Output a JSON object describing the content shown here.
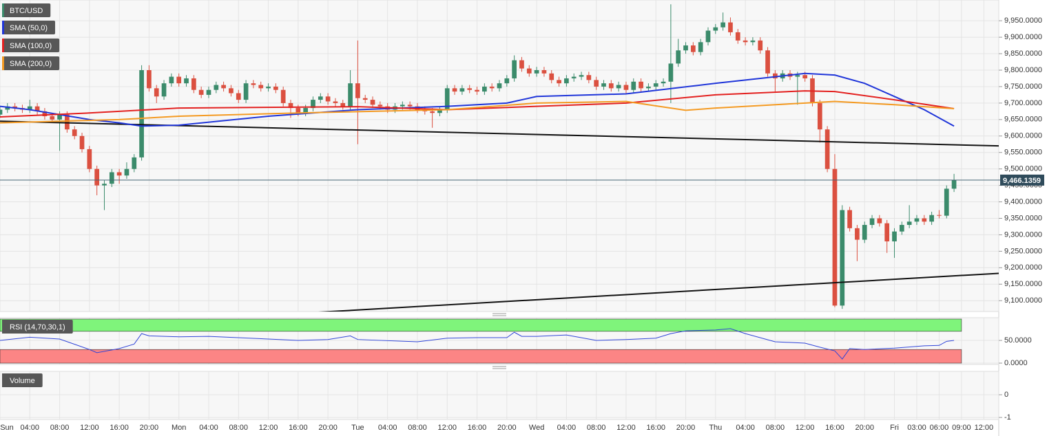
{
  "chart_data": [
    {
      "type": "candlestick",
      "name": "BTC/USD",
      "up_color": "#3b8b6b",
      "down_color": "#db5040",
      "xlim": [
        0,
        134
      ],
      "xticks": [
        {
          "value": 0,
          "label": "Sun"
        },
        {
          "value": 4,
          "label": "04:00"
        },
        {
          "value": 8,
          "label": "08:00"
        },
        {
          "value": 12,
          "label": "12:00"
        },
        {
          "value": 16,
          "label": "16:00"
        },
        {
          "value": 20,
          "label": "20:00"
        },
        {
          "value": 24,
          "label": "Mon"
        },
        {
          "value": 28,
          "label": "04:00"
        },
        {
          "value": 32,
          "label": "08:00"
        },
        {
          "value": 36,
          "label": "12:00"
        },
        {
          "value": 40,
          "label": "16:00"
        },
        {
          "value": 44,
          "label": "20:00"
        },
        {
          "value": 48,
          "label": "Tue"
        },
        {
          "value": 52,
          "label": "04:00"
        },
        {
          "value": 56,
          "label": "08:00"
        },
        {
          "value": 60,
          "label": "12:00"
        },
        {
          "value": 64,
          "label": "16:00"
        },
        {
          "value": 68,
          "label": "20:00"
        },
        {
          "value": 72,
          "label": "Wed"
        },
        {
          "value": 76,
          "label": "04:00"
        },
        {
          "value": 80,
          "label": "08:00"
        },
        {
          "value": 84,
          "label": "12:00"
        },
        {
          "value": 88,
          "label": "16:00"
        },
        {
          "value": 92,
          "label": "20:00"
        },
        {
          "value": 96,
          "label": "Thu"
        },
        {
          "value": 100,
          "label": "04:00"
        },
        {
          "value": 104,
          "label": "08:00"
        },
        {
          "value": 108,
          "label": "12:00"
        },
        {
          "value": 112,
          "label": "16:00"
        },
        {
          "value": 116,
          "label": "20:00"
        },
        {
          "value": 120,
          "label": "Fri"
        },
        {
          "value": 123,
          "label": "03:00"
        },
        {
          "value": 126,
          "label": "06:00"
        },
        {
          "value": 129,
          "label": "09:00"
        },
        {
          "value": 132,
          "label": "12:00"
        }
      ],
      "ylim": [
        9067,
        10013
      ],
      "yticks": [
        {
          "value": 9100,
          "label": "9,100.0000"
        },
        {
          "value": 9150,
          "label": "9,150.0000"
        },
        {
          "value": 9200,
          "label": "9,200.0000"
        },
        {
          "value": 9250,
          "label": "9,250.0000"
        },
        {
          "value": 9300,
          "label": "9,300.0000"
        },
        {
          "value": 9350,
          "label": "9,350.0000"
        },
        {
          "value": 9400,
          "label": "9,400.0000"
        },
        {
          "value": 9450,
          "label": "9,450.0000"
        },
        {
          "value": 9500,
          "label": "9,500.0000"
        },
        {
          "value": 9550,
          "label": "9,550.0000"
        },
        {
          "value": 9600,
          "label": "9,600.0000"
        },
        {
          "value": 9650,
          "label": "9,650.0000"
        },
        {
          "value": 9700,
          "label": "9,700.0000"
        },
        {
          "value": 9750,
          "label": "9,750.0000"
        },
        {
          "value": 9800,
          "label": "9,800.0000"
        },
        {
          "value": 9850,
          "label": "9,850.0000"
        },
        {
          "value": 9900,
          "label": "9,900.0000"
        },
        {
          "value": 9950,
          "label": "9,950.0000"
        }
      ],
      "grid": true,
      "x": [
        0,
        1,
        2,
        3,
        4,
        5,
        6,
        7,
        8,
        9,
        10,
        11,
        12,
        13,
        14,
        15,
        16,
        17,
        18,
        19,
        20,
        21,
        22,
        23,
        24,
        25,
        26,
        27,
        28,
        29,
        30,
        31,
        32,
        33,
        34,
        35,
        36,
        37,
        38,
        39,
        40,
        41,
        42,
        43,
        44,
        45,
        46,
        47,
        48,
        49,
        50,
        51,
        52,
        53,
        54,
        55,
        56,
        57,
        58,
        59,
        60,
        61,
        62,
        63,
        64,
        65,
        66,
        67,
        68,
        69,
        70,
        71,
        72,
        73,
        74,
        75,
        76,
        77,
        78,
        79,
        80,
        81,
        82,
        83,
        84,
        85,
        86,
        87,
        88,
        89,
        90,
        91,
        92,
        93,
        94,
        95,
        96,
        97,
        98,
        99,
        100,
        101,
        102,
        103,
        104,
        105,
        106,
        107,
        108,
        109,
        110,
        111,
        112,
        113,
        114,
        115,
        116,
        117,
        118,
        119,
        120,
        121,
        122,
        123,
        124,
        125,
        126,
        127,
        128
      ],
      "open": [
        9665,
        9680,
        9690,
        9685,
        9680,
        9690,
        9675,
        9660,
        9650,
        9665,
        9620,
        9600,
        9560,
        9500,
        9450,
        9455,
        9490,
        9480,
        9500,
        9535,
        9800,
        9745,
        9720,
        9760,
        9780,
        9760,
        9775,
        9740,
        9725,
        9740,
        9755,
        9745,
        9730,
        9710,
        9760,
        9755,
        9745,
        9750,
        9740,
        9700,
        9685,
        9670,
        9685,
        9710,
        9720,
        9705,
        9700,
        9690,
        9760,
        9715,
        9710,
        9695,
        9690,
        9680,
        9690,
        9695,
        9690,
        9680,
        9675,
        9670,
        9680,
        9745,
        9735,
        9745,
        9740,
        9735,
        9750,
        9745,
        9760,
        9775,
        9830,
        9805,
        9790,
        9800,
        9790,
        9770,
        9760,
        9775,
        9780,
        9785,
        9770,
        9750,
        9760,
        9745,
        9755,
        9740,
        9765,
        9745,
        9750,
        9760,
        9765,
        9820,
        9860,
        9875,
        9855,
        9885,
        9920,
        9930,
        9945,
        9915,
        9890,
        9885,
        9890,
        9860,
        9790,
        9775,
        9790,
        9780,
        9785,
        9775,
        9700,
        9620,
        9500,
        9085,
        9375,
        9320,
        9285,
        9330,
        9350,
        9335,
        9280,
        9310,
        9330,
        9340,
        9350,
        9340,
        9360,
        9358,
        9440
      ],
      "high": [
        9690,
        9700,
        9700,
        9695,
        9710,
        9700,
        9685,
        9670,
        9675,
        9675,
        9630,
        9610,
        9570,
        9510,
        9465,
        9500,
        9500,
        9520,
        9545,
        9815,
        9815,
        9755,
        9770,
        9790,
        9790,
        9785,
        9785,
        9750,
        9750,
        9765,
        9765,
        9755,
        9740,
        9770,
        9770,
        9765,
        9760,
        9760,
        9750,
        9710,
        9695,
        9695,
        9720,
        9730,
        9730,
        9715,
        9710,
        9800,
        9890,
        9725,
        9720,
        9705,
        9700,
        9700,
        9705,
        9705,
        9700,
        9690,
        9685,
        9690,
        9755,
        9755,
        9755,
        9755,
        9750,
        9760,
        9760,
        9770,
        9785,
        9845,
        9840,
        9815,
        9810,
        9810,
        9800,
        9780,
        9785,
        9790,
        9795,
        9795,
        9780,
        9770,
        9770,
        9765,
        9765,
        9775,
        9775,
        9760,
        9770,
        9775,
        10000,
        9895,
        9885,
        9885,
        9895,
        9930,
        9940,
        9975,
        9960,
        9925,
        9900,
        9900,
        9900,
        9870,
        9800,
        9800,
        9800,
        9795,
        9795,
        9785,
        9710,
        9630,
        9545,
        9390,
        9385,
        9330,
        9340,
        9360,
        9360,
        9345,
        9320,
        9340,
        9390,
        9360,
        9360,
        9370,
        9375,
        9450,
        9485
      ],
      "low": [
        9655,
        9670,
        9675,
        9670,
        9670,
        9665,
        9650,
        9640,
        9555,
        9610,
        9590,
        9550,
        9490,
        9420,
        9375,
        9445,
        9455,
        9470,
        9490,
        9525,
        9735,
        9700,
        9710,
        9750,
        9750,
        9750,
        9730,
        9715,
        9715,
        9730,
        9735,
        9720,
        9700,
        9700,
        9745,
        9735,
        9735,
        9730,
        9690,
        9655,
        9660,
        9660,
        9675,
        9700,
        9695,
        9690,
        9680,
        9680,
        9575,
        9700,
        9685,
        9680,
        9670,
        9670,
        9680,
        9680,
        9670,
        9665,
        9625,
        9660,
        9670,
        9725,
        9725,
        9730,
        9725,
        9725,
        9735,
        9735,
        9750,
        9765,
        9795,
        9780,
        9780,
        9780,
        9760,
        9750,
        9750,
        9765,
        9770,
        9760,
        9740,
        9740,
        9735,
        9735,
        9730,
        9730,
        9735,
        9735,
        9740,
        9750,
        9700,
        9810,
        9850,
        9845,
        9845,
        9875,
        9910,
        9920,
        9905,
        9880,
        9875,
        9875,
        9850,
        9780,
        9735,
        9765,
        9770,
        9695,
        9765,
        9690,
        9580,
        9490,
        9080,
        9075,
        9310,
        9220,
        9275,
        9320,
        9325,
        9245,
        9230,
        9300,
        9320,
        9330,
        9330,
        9330,
        9350,
        9350,
        9430
      ],
      "close": [
        9680,
        9690,
        9685,
        9680,
        9690,
        9675,
        9660,
        9650,
        9665,
        9620,
        9600,
        9560,
        9500,
        9450,
        9455,
        9490,
        9480,
        9500,
        9535,
        9800,
        9745,
        9720,
        9760,
        9780,
        9760,
        9775,
        9740,
        9725,
        9740,
        9755,
        9745,
        9730,
        9710,
        9760,
        9755,
        9745,
        9750,
        9740,
        9700,
        9685,
        9670,
        9685,
        9710,
        9720,
        9705,
        9700,
        9690,
        9760,
        9715,
        9710,
        9695,
        9690,
        9680,
        9690,
        9695,
        9690,
        9680,
        9675,
        9670,
        9680,
        9745,
        9735,
        9745,
        9740,
        9735,
        9750,
        9745,
        9760,
        9775,
        9830,
        9805,
        9790,
        9800,
        9790,
        9770,
        9760,
        9775,
        9780,
        9785,
        9770,
        9750,
        9760,
        9745,
        9755,
        9740,
        9765,
        9745,
        9750,
        9760,
        9765,
        9820,
        9860,
        9875,
        9855,
        9885,
        9920,
        9930,
        9945,
        9915,
        9890,
        9885,
        9890,
        9860,
        9790,
        9775,
        9790,
        9780,
        9785,
        9775,
        9700,
        9620,
        9500,
        9085,
        9375,
        9320,
        9285,
        9330,
        9350,
        9335,
        9280,
        9310,
        9330,
        9340,
        9350,
        9340,
        9360,
        9358,
        9440,
        9466.1359
      ],
      "overlays": [
        {
          "name": "SMA (50,0)",
          "color": "#1f35d9",
          "x": [
            0,
            4,
            8,
            12,
            16,
            19,
            24,
            36,
            48,
            60,
            68,
            72,
            84,
            96,
            104,
            108,
            112,
            116,
            120,
            124,
            128
          ],
          "values": [
            9690,
            9680,
            9665,
            9650,
            9640,
            9630,
            9633,
            9660,
            9680,
            9690,
            9700,
            9720,
            9728,
            9760,
            9780,
            9790,
            9785,
            9760,
            9720,
            9680,
            9630
          ]
        },
        {
          "name": "SMA (100,0)",
          "color": "#e3201f",
          "x": [
            0,
            12,
            24,
            48,
            60,
            72,
            84,
            96,
            108,
            112,
            120,
            128
          ],
          "values": [
            9658,
            9670,
            9685,
            9689,
            9680,
            9690,
            9700,
            9725,
            9737,
            9735,
            9710,
            9683
          ]
        },
        {
          "name": "SMA (200,0)",
          "color": "#f49a22",
          "x": [
            0,
            16,
            24,
            40,
            60,
            72,
            84,
            92,
            96,
            108,
            112,
            120,
            128
          ],
          "values": [
            9640,
            9650,
            9660,
            9670,
            9680,
            9700,
            9705,
            9678,
            9685,
            9700,
            9705,
            9695,
            9683
          ]
        }
      ],
      "trendlines": [
        {
          "x": [
            0,
            134
          ],
          "values": [
            9645,
            9570
          ]
        },
        {
          "x": [
            42,
            134
          ],
          "values": [
            9064,
            9183
          ]
        }
      ],
      "last_price": {
        "value": 9466.1359,
        "label": "9,466.1359"
      }
    },
    {
      "type": "line",
      "title": "RSI (14,70,30,1)",
      "color": "#2f44d8",
      "x": [
        0,
        4,
        8,
        12,
        13,
        16,
        18,
        19,
        20,
        24,
        28,
        36,
        40,
        44,
        47,
        48,
        56,
        60,
        64,
        68,
        69,
        70,
        72,
        76,
        80,
        84,
        88,
        90,
        92,
        96,
        98,
        100,
        104,
        108,
        110,
        112,
        113,
        114,
        116,
        120,
        124,
        126,
        127,
        128
      ],
      "values": [
        50,
        57,
        53,
        30,
        23,
        32,
        42,
        65,
        60,
        58,
        59,
        53,
        50,
        52,
        60,
        52,
        47,
        55,
        56,
        56,
        68,
        59,
        59,
        62,
        50,
        52,
        55,
        65,
        71,
        73,
        76,
        65,
        47,
        44,
        35,
        27,
        9,
        32,
        30,
        33,
        38,
        39,
        48,
        50
      ],
      "ylim": [
        -3,
        100
      ],
      "yticks": [
        {
          "value": 50,
          "label": "50.0000"
        },
        {
          "value": 0,
          "label": "0.0000"
        }
      ],
      "bands": [
        {
          "range": [
            70,
            97
          ],
          "color": "#7ff47b"
        },
        {
          "range": [
            0,
            30
          ],
          "color": "#fc8585"
        }
      ]
    },
    {
      "type": "bar",
      "title": "Volume",
      "ylim": [
        -1.09,
        1.03
      ],
      "yticks": [
        0,
        -1
      ]
    }
  ]
}
